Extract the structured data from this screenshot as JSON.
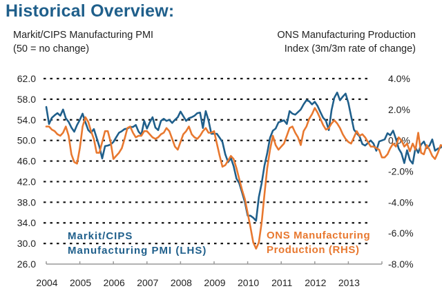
{
  "page": {
    "title": "Historical Overview:"
  },
  "chart_data": {
    "type": "line",
    "title": "Historical Overview:",
    "ylabel_left": [
      "Markit/CIPS Manufacturing PMI",
      "(50 = no change)"
    ],
    "ylabel_right": [
      "ONS Manufacturing Production",
      "Index (3m/3m rate of change)"
    ],
    "x_ticks": [
      "2004",
      "2005",
      "2006",
      "2007",
      "2008",
      "2009",
      "2010",
      "2011",
      "2012",
      "2013"
    ],
    "x_range": [
      2004,
      2014
    ],
    "y_left": {
      "range": [
        26,
        62
      ],
      "ticks": [
        "62.0",
        "58.0",
        "54.0",
        "50.0",
        "46.0",
        "42.0",
        "38.0",
        "34.0",
        "30.0",
        "26.0"
      ],
      "tick_values": [
        62,
        58,
        54,
        50,
        46,
        42,
        38,
        34,
        30,
        26
      ]
    },
    "y_right": {
      "range": [
        -8,
        4
      ],
      "ticks": [
        "4.0%",
        "2.0%",
        "0.0%",
        "-2.0%",
        "-4.0%",
        "-6.0%",
        "-8.0%"
      ],
      "tick_values": [
        4,
        2,
        0,
        -2,
        -4,
        -6,
        -8
      ]
    },
    "grid": "horizontal-dotted",
    "legend": [
      {
        "name": "Markit/CIPS Manufacturing PMI (LHS)",
        "lines": [
          "Markit/CIPS",
          "Manufacturing PMI (LHS)"
        ],
        "color": "#1f5f8b",
        "placement": "bottom-left"
      },
      {
        "name": "ONS Manufacturing Production (RHS)",
        "lines": [
          "ONS Manufacturing",
          "Production (RHS)"
        ],
        "color": "#e8782f",
        "placement": "bottom-right"
      }
    ],
    "series": [
      {
        "name": "Markit/CIPS Manufacturing PMI (LHS)",
        "axis": "left",
        "color": "#1f5f8b",
        "start": 2004.0,
        "step_months": 1,
        "values": [
          56.5,
          53.2,
          54.4,
          54.9,
          55.3,
          54.8,
          56.0,
          54.3,
          53.6,
          52.5,
          51.7,
          53.0,
          54.0,
          55.2,
          53.5,
          52.0,
          51.5,
          52.2,
          50.5,
          48.8,
          46.5,
          48.9,
          49.0,
          49.2,
          49.7,
          50.6,
          51.5,
          51.8,
          52.2,
          52.3,
          52.6,
          52.6,
          53.0,
          51.7,
          51.1,
          53.8,
          52.3,
          53.5,
          54.5,
          52.5,
          52.0,
          53.8,
          54.2,
          53.8,
          54.0,
          53.4,
          54.0,
          54.5,
          55.6,
          54.7,
          53.8,
          54.3,
          54.5,
          54.8,
          55.3,
          55.4,
          52.4,
          55.7,
          53.9,
          51.3,
          51.3,
          51.3,
          50.5,
          49.7,
          47.3,
          45.8,
          46.6,
          45.0,
          42.6,
          41.7,
          39.9,
          38.0,
          35.4,
          35.4,
          35.0,
          34.4,
          39.0,
          41.7,
          45.1,
          47.5,
          50.5,
          51.9,
          52.3,
          53.5,
          53.7,
          53.9,
          53.2,
          55.7,
          55.2,
          55.0,
          55.5,
          56.0,
          57.0,
          57.8,
          57.6,
          57.0,
          57.5,
          56.7,
          55.5,
          54.4,
          53.8,
          52.0,
          55.9,
          58.3,
          59.3,
          57.8,
          58.5,
          59.1,
          57.3,
          54.7,
          52.1,
          51.4,
          50.8,
          49.3,
          49.0,
          49.5,
          50.0,
          49.4,
          48.0,
          49.8,
          50.0,
          50.2,
          51.4,
          51.0,
          51.9,
          50.3,
          48.4,
          47.5,
          45.6,
          48.1,
          46.2,
          45.5,
          48.6,
          47.6,
          49.2,
          49.8,
          48.5,
          49.0,
          50.2,
          48.0,
          48.4,
          48.6,
          49.3,
          51.3,
          52.5,
          53.0
        ]
      },
      {
        "name": "ONS Manufacturing Production (RHS)",
        "axis": "right",
        "color": "#e8782f",
        "start": 2004.0,
        "step_months": 1,
        "values": [
          0.9,
          0.9,
          0.7,
          0.6,
          0.4,
          0.3,
          0.5,
          0.9,
          0.3,
          -0.9,
          -1.4,
          -1.5,
          -0.5,
          0.9,
          1.5,
          1.2,
          0.6,
          0.1,
          -0.8,
          -0.8,
          -0.1,
          0.6,
          0.6,
          -0.1,
          -1.2,
          -1.0,
          -0.8,
          -0.5,
          0.1,
          0.8,
          0.9,
          0.5,
          0.2,
          0.3,
          0.3,
          0.6,
          0.6,
          0.4,
          0.2,
          0.1,
          0.2,
          0.4,
          0.5,
          0.8,
          0.6,
          0.1,
          -0.4,
          -0.6,
          -0.1,
          0.4,
          0.6,
          0.9,
          0.4,
          0.2,
          0.1,
          0.3,
          0.6,
          0.8,
          0.5,
          0.5,
          0.6,
          -0.2,
          -1.0,
          -1.7,
          -1.6,
          -1.3,
          -1.0,
          -1.2,
          -1.8,
          -2.5,
          -3.2,
          -3.8,
          -4.7,
          -5.6,
          -6.6,
          -7.0,
          -6.6,
          -5.3,
          -3.5,
          -1.8,
          -0.6,
          0.3,
          -0.3,
          -0.6,
          -0.4,
          -0.2,
          0.3,
          0.8,
          0.9,
          0.5,
          0.2,
          -0.3,
          0.6,
          0.9,
          1.4,
          1.7,
          2.1,
          1.8,
          1.4,
          1.0,
          0.7,
          0.8,
          1.1,
          1.3,
          1.1,
          0.8,
          0.4,
          0.1,
          -0.1,
          -0.2,
          0.2,
          0.6,
          0.3,
          0.4,
          0.2,
          -0.1,
          -0.4,
          -0.4,
          -0.5,
          -0.6,
          -1.1,
          -1.1,
          -0.9,
          -0.5,
          -0.2,
          -0.4,
          0.2,
          0.0,
          -0.4,
          -0.2,
          -0.7,
          -0.2,
          -0.6,
          0.5,
          -0.8,
          -0.9,
          -0.3,
          -0.6,
          -1.0,
          -1.2,
          -0.8,
          -0.3,
          -0.4,
          -0.2,
          0.4
        ]
      }
    ]
  }
}
